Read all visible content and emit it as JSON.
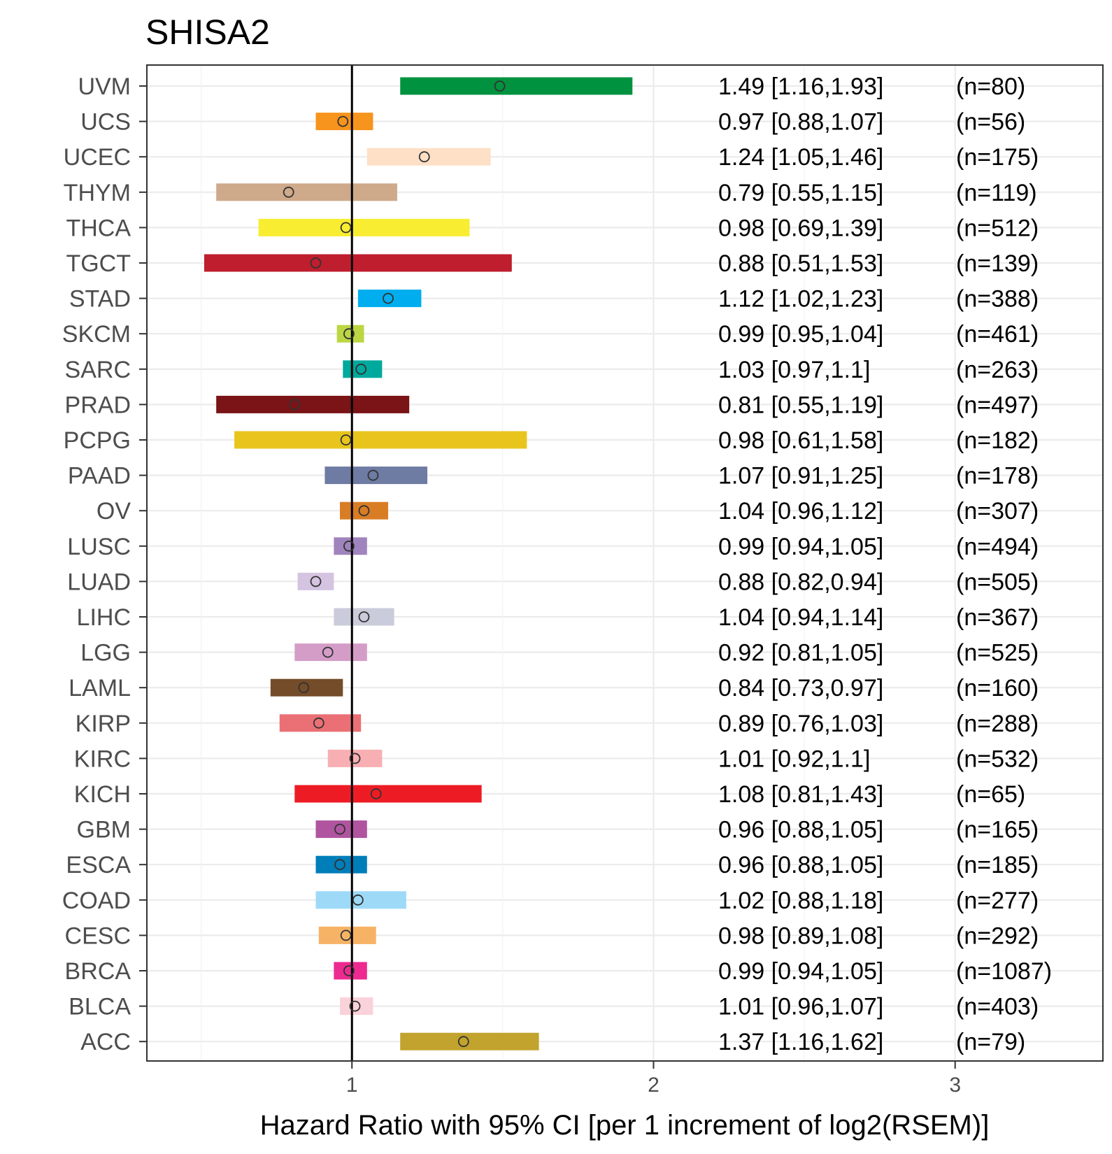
{
  "chart_data": {
    "type": "forest",
    "title": "SHISA2",
    "xlabel": "Hazard Ratio with 95% CI [per 1 increment of log2(RSEM)]",
    "ylabel": "",
    "xlim": [
      0.32,
      3.49
    ],
    "x_ticks": [
      "1",
      "2",
      "3"
    ],
    "reference_line": 1,
    "rows": [
      {
        "label": "UVM",
        "hr": 1.49,
        "lo": 1.16,
        "hi": 1.93,
        "text": "1.49 [1.16,1.93]",
        "n": "(n=80)",
        "color": "#00923F"
      },
      {
        "label": "UCS",
        "hr": 0.97,
        "lo": 0.88,
        "hi": 1.07,
        "text": "0.97 [0.88,1.07]",
        "n": "(n=56)",
        "color": "#F7941D"
      },
      {
        "label": "UCEC",
        "hr": 1.24,
        "lo": 1.05,
        "hi": 1.46,
        "text": "1.24 [1.05,1.46]",
        "n": "(n=175)",
        "color": "#FDE0C5"
      },
      {
        "label": "THYM",
        "hr": 0.79,
        "lo": 0.55,
        "hi": 1.15,
        "text": "0.79 [0.55,1.15]",
        "n": "(n=119)",
        "color": "#CEA98A"
      },
      {
        "label": "THCA",
        "hr": 0.98,
        "lo": 0.69,
        "hi": 1.39,
        "text": "0.98 [0.69,1.39]",
        "n": "(n=512)",
        "color": "#F9ED32"
      },
      {
        "label": "TGCT",
        "hr": 0.88,
        "lo": 0.51,
        "hi": 1.53,
        "text": "0.88 [0.51,1.53]",
        "n": "(n=139)",
        "color": "#BE1E2D"
      },
      {
        "label": "STAD",
        "hr": 1.12,
        "lo": 1.02,
        "hi": 1.23,
        "text": "1.12 [1.02,1.23]",
        "n": "(n=388)",
        "color": "#00AEEF"
      },
      {
        "label": "SKCM",
        "hr": 0.99,
        "lo": 0.95,
        "hi": 1.04,
        "text": "0.99 [0.95,1.04]",
        "n": "(n=461)",
        "color": "#BBD642"
      },
      {
        "label": "SARC",
        "hr": 1.03,
        "lo": 0.97,
        "hi": 1.1,
        "text": "1.03 [0.97,1.1]",
        "n": "(n=263)",
        "color": "#00A99D"
      },
      {
        "label": "PRAD",
        "hr": 0.81,
        "lo": 0.55,
        "hi": 1.19,
        "text": "0.81 [0.55,1.19]",
        "n": "(n=497)",
        "color": "#7A1416"
      },
      {
        "label": "PCPG",
        "hr": 0.98,
        "lo": 0.61,
        "hi": 1.58,
        "text": "0.98 [0.61,1.58]",
        "n": "(n=182)",
        "color": "#E8C51D"
      },
      {
        "label": "PAAD",
        "hr": 1.07,
        "lo": 0.91,
        "hi": 1.25,
        "text": "1.07 [0.91,1.25]",
        "n": "(n=178)",
        "color": "#6E7BA2"
      },
      {
        "label": "OV",
        "hr": 1.04,
        "lo": 0.96,
        "hi": 1.12,
        "text": "1.04 [0.96,1.12]",
        "n": "(n=307)",
        "color": "#D97D25"
      },
      {
        "label": "LUSC",
        "hr": 0.99,
        "lo": 0.94,
        "hi": 1.05,
        "text": "0.99 [0.94,1.05]",
        "n": "(n=494)",
        "color": "#A084BD"
      },
      {
        "label": "LUAD",
        "hr": 0.88,
        "lo": 0.82,
        "hi": 0.94,
        "text": "0.88 [0.82,0.94]",
        "n": "(n=505)",
        "color": "#D5C4E1"
      },
      {
        "label": "LIHC",
        "hr": 1.04,
        "lo": 0.94,
        "hi": 1.14,
        "text": "1.04 [0.94,1.14]",
        "n": "(n=367)",
        "color": "#CACCDB"
      },
      {
        "label": "LGG",
        "hr": 0.92,
        "lo": 0.81,
        "hi": 1.05,
        "text": "0.92 [0.81,1.05]",
        "n": "(n=525)",
        "color": "#D49DC7"
      },
      {
        "label": "LAML",
        "hr": 0.84,
        "lo": 0.73,
        "hi": 0.97,
        "text": "0.84 [0.73,0.97]",
        "n": "(n=160)",
        "color": "#754C29"
      },
      {
        "label": "KIRP",
        "hr": 0.89,
        "lo": 0.76,
        "hi": 1.03,
        "text": "0.89 [0.76,1.03]",
        "n": "(n=288)",
        "color": "#EA7075"
      },
      {
        "label": "KIRC",
        "hr": 1.01,
        "lo": 0.92,
        "hi": 1.1,
        "text": "1.01 [0.92,1.1]",
        "n": "(n=532)",
        "color": "#F8AFB3"
      },
      {
        "label": "KICH",
        "hr": 1.08,
        "lo": 0.81,
        "hi": 1.43,
        "text": "1.08 [0.81,1.43]",
        "n": "(n=65)",
        "color": "#ED1C24"
      },
      {
        "label": "GBM",
        "hr": 0.96,
        "lo": 0.88,
        "hi": 1.05,
        "text": "0.96 [0.88,1.05]",
        "n": "(n=165)",
        "color": "#B054A0"
      },
      {
        "label": "ESCA",
        "hr": 0.96,
        "lo": 0.88,
        "hi": 1.05,
        "text": "0.96 [0.88,1.05]",
        "n": "(n=185)",
        "color": "#007EB9"
      },
      {
        "label": "COAD",
        "hr": 1.02,
        "lo": 0.88,
        "hi": 1.18,
        "text": "1.02 [0.88,1.18]",
        "n": "(n=277)",
        "color": "#9EDAF8"
      },
      {
        "label": "CESC",
        "hr": 0.98,
        "lo": 0.89,
        "hi": 1.08,
        "text": "0.98 [0.89,1.08]",
        "n": "(n=292)",
        "color": "#F6B366"
      },
      {
        "label": "BRCA",
        "hr": 0.99,
        "lo": 0.94,
        "hi": 1.05,
        "text": "0.99 [0.94,1.05]",
        "n": "(n=1087)",
        "color": "#EC2A90"
      },
      {
        "label": "BLCA",
        "hr": 1.01,
        "lo": 0.96,
        "hi": 1.07,
        "text": "1.01 [0.96,1.07]",
        "n": "(n=403)",
        "color": "#FAD2D9"
      },
      {
        "label": "ACC",
        "hr": 1.37,
        "lo": 1.16,
        "hi": 1.62,
        "text": "1.37 [1.16,1.62]",
        "n": "(n=79)",
        "color": "#C1A32D"
      }
    ]
  }
}
